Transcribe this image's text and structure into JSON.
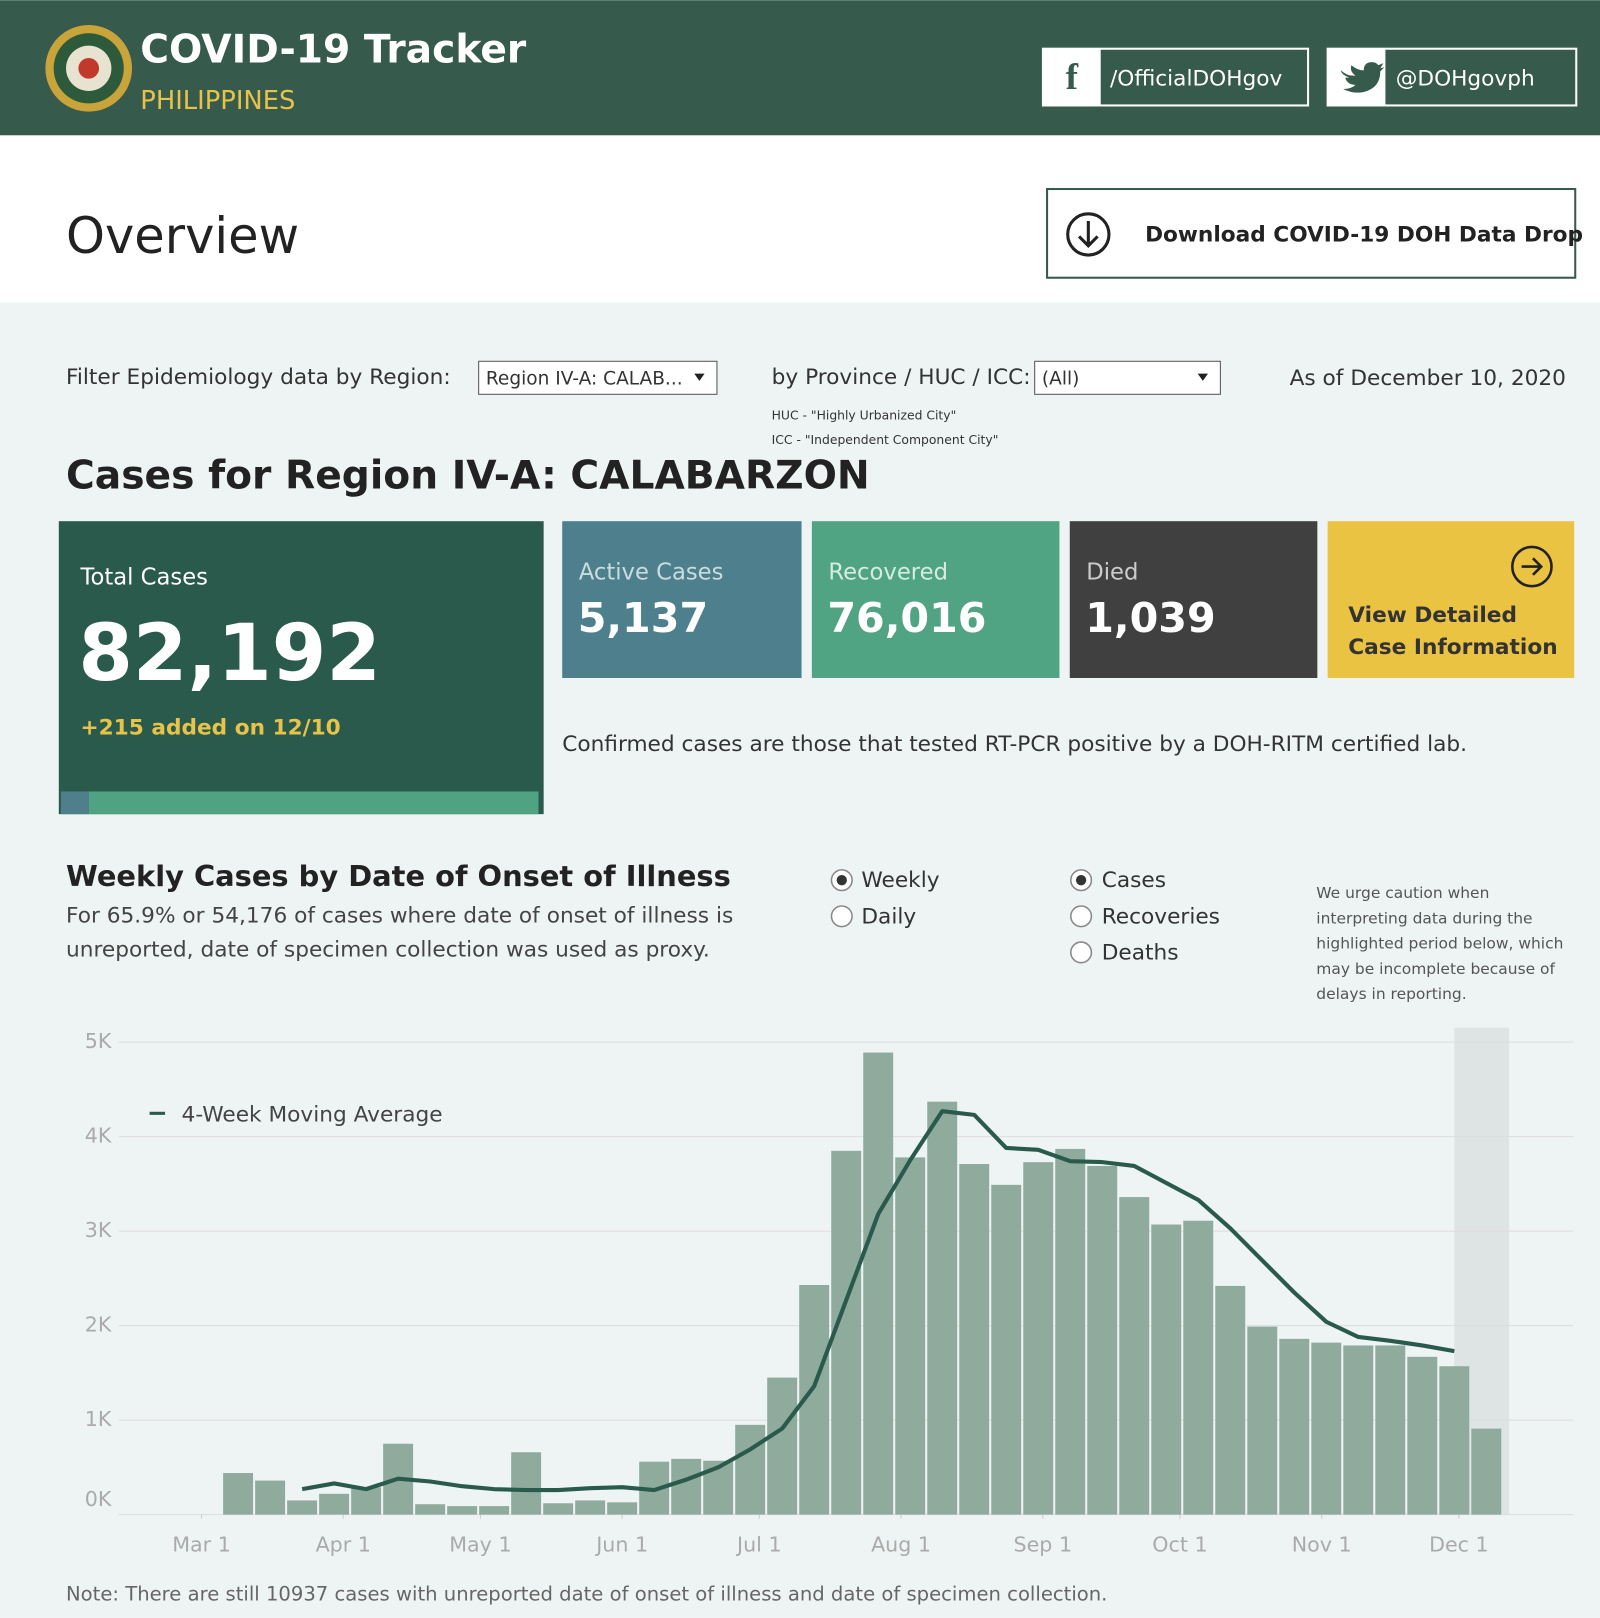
{
  "header": {
    "title": "COVID-19 Tracker",
    "subtitle": "PHILIPPINES",
    "facebook": "/OfficialDOHgov",
    "twitter": "@DOHgovph"
  },
  "overview": {
    "title": "Overview",
    "download": "Download COVID-19 DOH Data Drop"
  },
  "filters": {
    "region_label": "Filter Epidemiology data by Region:",
    "region_value": "Region IV-A: CALAB...",
    "province_label": "by Province / HUC / ICC:",
    "province_value": "(All)",
    "huc_note": "HUC - \"Highly Urbanized City\"",
    "icc_note": "ICC - \"Independent Component City\"",
    "as_of": "As of December 10, 2020"
  },
  "region_title": "Cases for Region IV-A: CALABARZON",
  "cards": {
    "total_label": "Total Cases",
    "total_value": "82,192",
    "added": "+215 added on 12/10",
    "active_label": "Active Cases",
    "active_value": "5,137",
    "recovered_label": "Recovered",
    "recovered_value": "76,016",
    "died_label": "Died",
    "died_value": "1,039",
    "view_line1": "View Detailed",
    "view_line2": "Case Information",
    "confirmed_note": "Confirmed cases are those that tested RT-PCR positive by a DOH-RITM certified lab."
  },
  "chart_data": {
    "type": "bar",
    "title": "Weekly Cases by Date of Onset of Illness",
    "subtitle_line1": "For 65.9% or 54,176 of cases where date of onset of illness is",
    "subtitle_line2": "unreported, date of specimen collection was used as proxy.",
    "period_options": [
      "Weekly",
      "Daily"
    ],
    "period_selected": 0,
    "measure_options": [
      "Cases",
      "Recoveries",
      "Deaths"
    ],
    "measure_selected": 0,
    "caution": [
      "We urge caution when",
      "interpreting data during the",
      "highlighted period below, which",
      "may be incomplete because of",
      "delays in reporting."
    ],
    "x": [
      8,
      15,
      22,
      29,
      36,
      43,
      50,
      57,
      64,
      71,
      78,
      85,
      92,
      99,
      106,
      113,
      120,
      127,
      134,
      141,
      148,
      155,
      162,
      169,
      176,
      183,
      190,
      197,
      204,
      211,
      218,
      225,
      232,
      239,
      246,
      253,
      260,
      267,
      274,
      281
    ],
    "values": [
      440,
      360,
      150,
      220,
      290,
      750,
      110,
      90,
      90,
      660,
      120,
      150,
      130,
      560,
      590,
      570,
      950,
      1450,
      2430,
      3850,
      4890,
      3780,
      4370,
      3710,
      3490,
      3730,
      3870,
      3690,
      3360,
      3070,
      3110,
      2420,
      1990,
      1860,
      1820,
      1790,
      1790,
      1670,
      1570,
      910
    ],
    "color": "#8fab9e",
    "line": {
      "name": "4-Week Moving Average",
      "color": "#2a5a4b",
      "values": [
        null,
        null,
        270,
        330,
        270,
        380,
        350,
        300,
        270,
        260,
        260,
        280,
        290,
        260,
        370,
        500,
        690,
        910,
        1360,
        2270,
        3180,
        3750,
        4270,
        4230,
        3880,
        3860,
        3740,
        3730,
        3690,
        3510,
        3330,
        3030,
        2690,
        2350,
        2040,
        1880,
        1840,
        1790,
        1730,
        null
      ]
    },
    "highlight": [
      274,
      286
    ],
    "xlim": [
      -17,
      300
    ],
    "xticks": [
      {
        "value": 0,
        "label": "Mar 1"
      },
      {
        "value": 31,
        "label": "Apr 1"
      },
      {
        "value": 61,
        "label": "May 1"
      },
      {
        "value": 92,
        "label": "Jun 1"
      },
      {
        "value": 122,
        "label": "Jul 1"
      },
      {
        "value": 153,
        "label": "Aug 1"
      },
      {
        "value": 184,
        "label": "Sep 1"
      },
      {
        "value": 214,
        "label": "Oct 1"
      },
      {
        "value": 245,
        "label": "Nov 1"
      },
      {
        "value": 275,
        "label": "Dec 1"
      }
    ],
    "ylim": [
      0,
      5000
    ],
    "yticks": [
      {
        "value": 0,
        "label": "0K"
      },
      {
        "value": 1000,
        "label": "1K"
      },
      {
        "value": 2000,
        "label": "2K"
      },
      {
        "value": 3000,
        "label": "3K"
      },
      {
        "value": 4000,
        "label": "4K"
      },
      {
        "value": 5000,
        "label": "5K"
      }
    ],
    "grid": true,
    "note": "Note: There are still 10937 cases with unreported date of onset of illness and date of specimen collection."
  }
}
